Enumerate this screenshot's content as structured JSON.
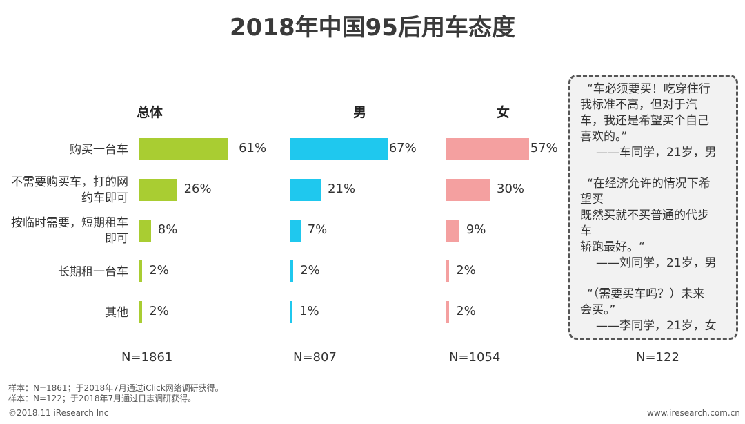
{
  "title": "2018年中国95后用车态度",
  "chart_data": {
    "type": "bar",
    "orientation": "horizontal",
    "title": "2018年中国95后用车态度",
    "categories": [
      "购买一台车",
      "不需要购买车，打的网约车即可",
      "按临时需要，短期租车即可",
      "长期租一台车",
      "其他"
    ],
    "category_lines": [
      [
        "购买一台车"
      ],
      [
        "不需要购买车，打的网",
        "约车即可"
      ],
      [
        "按临时需要，短期租车",
        "即可"
      ],
      [
        "长期租一台车"
      ],
      [
        "其他"
      ]
    ],
    "xlim": [
      0,
      100
    ],
    "series": [
      {
        "name": "总体",
        "values": [
          61,
          26,
          8,
          2,
          2
        ],
        "labels": [
          "61%",
          "26%",
          "8%",
          "2%",
          "2%"
        ],
        "color": "#a9cd32",
        "n": "N=1861"
      },
      {
        "name": "男",
        "values": [
          67,
          21,
          7,
          2,
          1
        ],
        "labels": [
          "67%",
          "21%",
          "7%",
          "2%",
          "1%"
        ],
        "color": "#1fc8ee",
        "n": "N=807"
      },
      {
        "name": "女",
        "values": [
          57,
          30,
          9,
          2,
          2
        ],
        "labels": [
          "57%",
          "30%",
          "9%",
          "2%",
          "2%"
        ],
        "color": "#f4a0a0",
        "n": "N=1054"
      }
    ]
  },
  "quotes": {
    "items": [
      {
        "lines": [
          "“车必须要买！吃穿住行",
          "我标准不高，但对于汽",
          "车，我还是希望买个自己",
          "喜欢的。”"
        ],
        "author": "——车同学，21岁，男"
      },
      {
        "lines": [
          "“在经济允许的情况下希",
          "望买",
          "既然买就不买普通的代步",
          "车",
          "轿跑最好。“"
        ],
        "author": "——刘同学，21岁，男"
      },
      {
        "lines": [
          "“（需要买车吗？）未来",
          "会买。”"
        ],
        "author": "——李同学，21岁，女"
      }
    ],
    "n": "N=122"
  },
  "notes": [
    "样本：N=1861；于2018年7月通过iClick网络调研获得。",
    "样本：N=122；于2018年7月通过日志调研获得。"
  ],
  "footer": {
    "left": "©2018.11 iResearch Inc",
    "right": "www.iresearch.com.cn"
  }
}
